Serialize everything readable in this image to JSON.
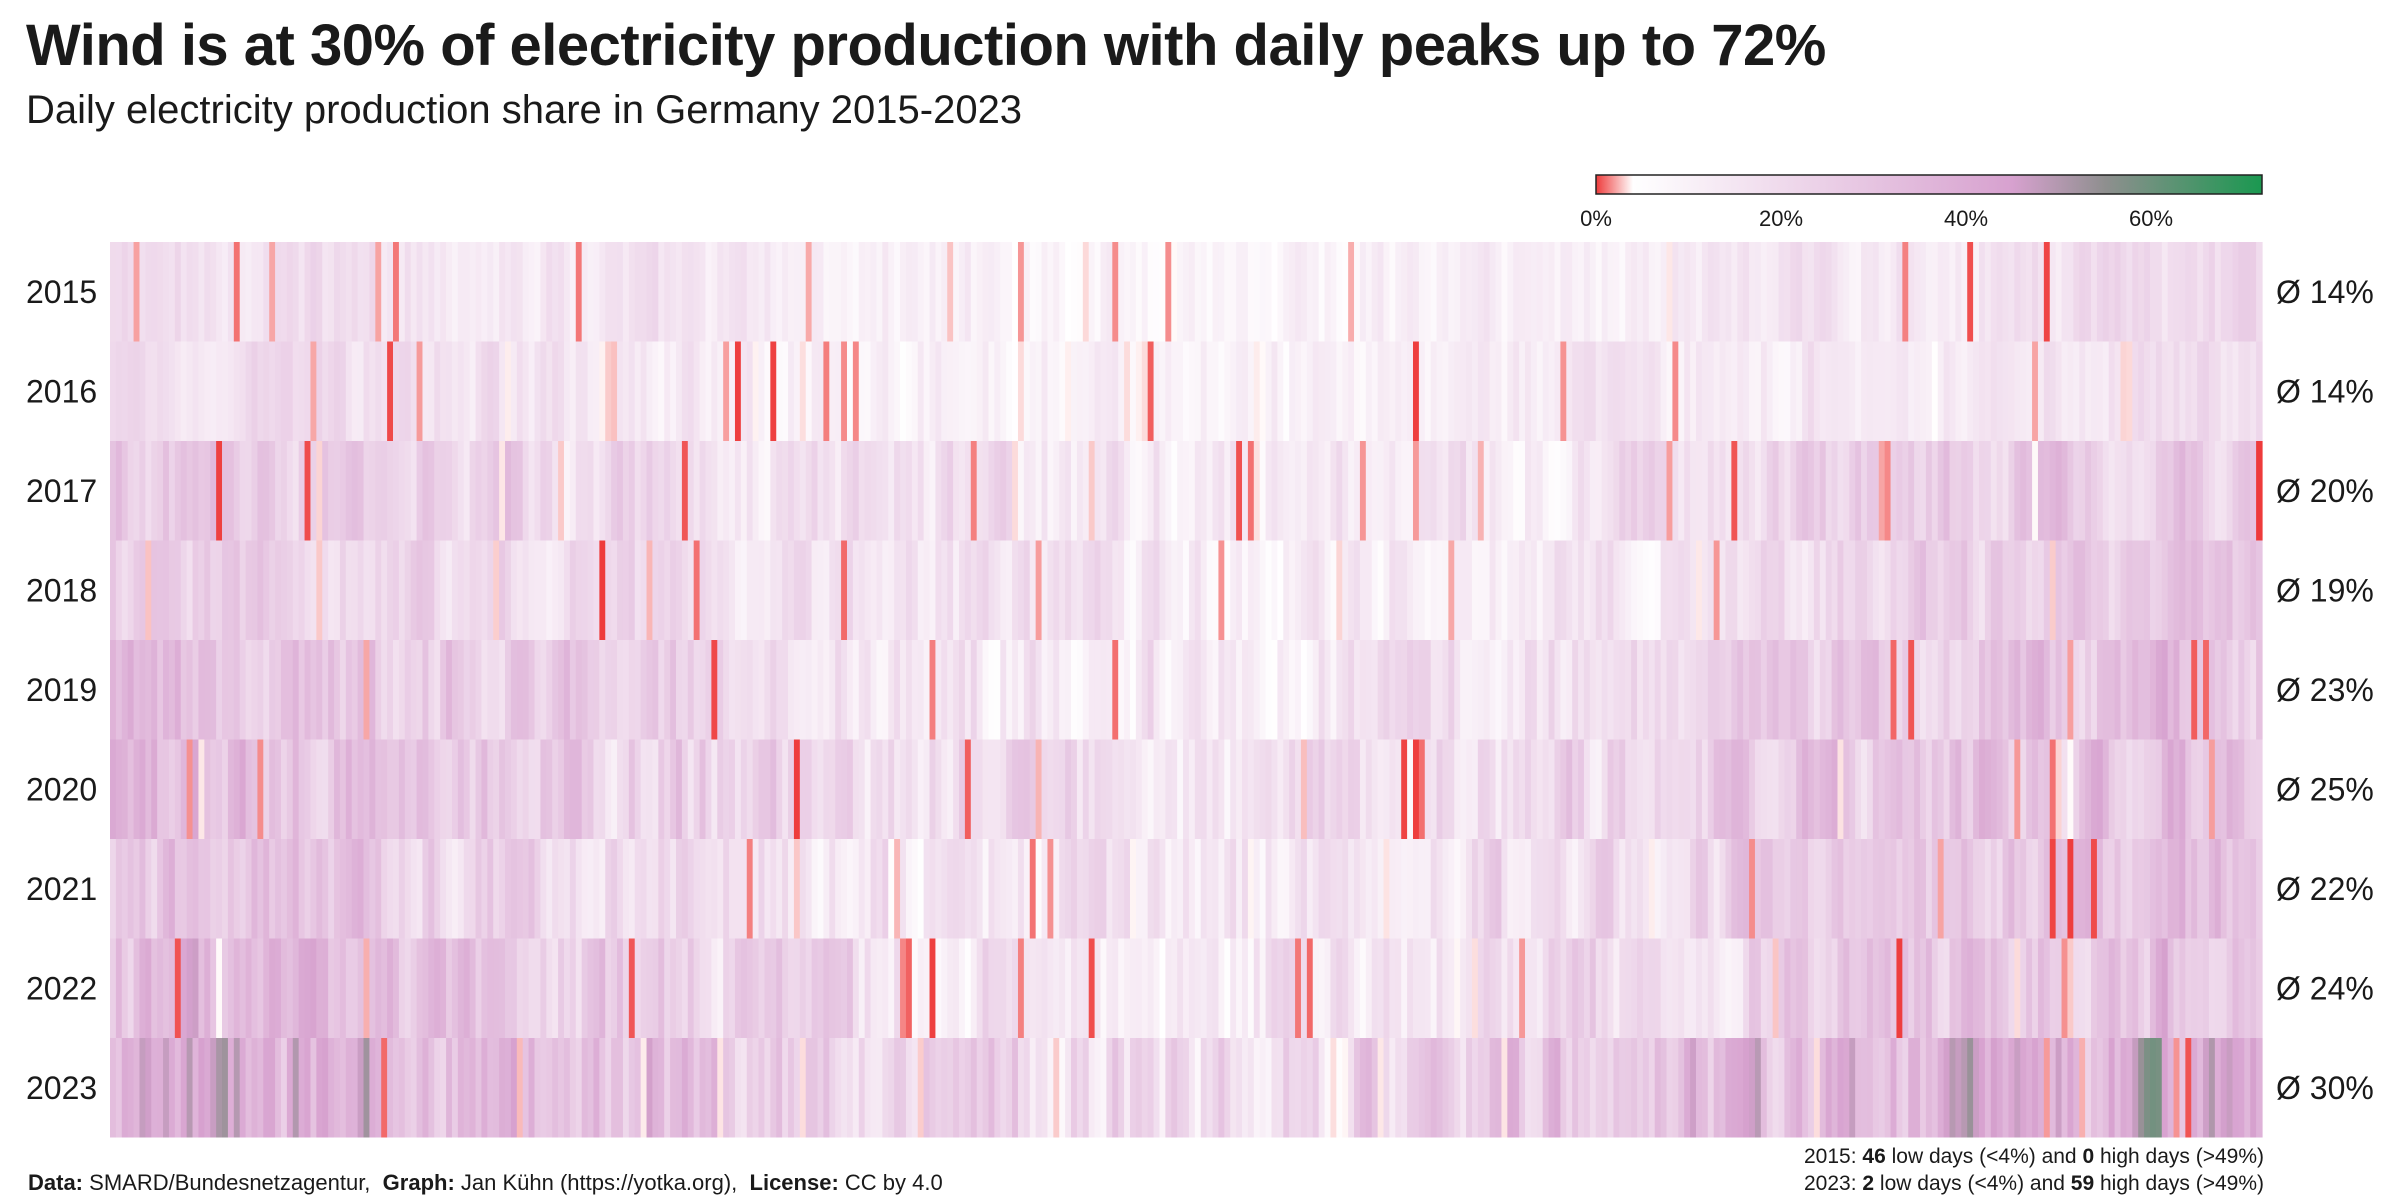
{
  "title": "Wind is at 30% of electricity production with daily peaks up to 72%",
  "subtitle": "Daily electricity production share in Germany 2015-2023",
  "footer": {
    "data_label": "Data:",
    "data_value": "SMARD/Bundesnetzagentur,",
    "graph_label": "Graph:",
    "graph_value": "Jan Kühn (https://yotka.org),",
    "license_label": "License:",
    "license_value": "CC by 4.0"
  },
  "summary": {
    "line1": {
      "prefix": "2015:",
      "low_count": "46",
      "low_text": "low days (<4%) and",
      "high_count": "0",
      "high_text": "high days (>49%)"
    },
    "line2": {
      "prefix": "2023:",
      "low_count": "2",
      "low_text": "low days (<4%) and",
      "high_count": "59",
      "high_text": "high days (>49%)"
    }
  },
  "colors": {
    "low": "#ee3b3b",
    "white": "#ffffff",
    "pink": "#d7a1cf",
    "gray": "#8f8f8f",
    "green": "#1a9850"
  },
  "chart_data": {
    "type": "heatmap",
    "title": "Wind is at 30% of electricity production with daily peaks up to 72%",
    "subtitle": "Daily electricity production share in Germany 2015-2023",
    "x": "day of year",
    "y_categories": [
      "2015",
      "2016",
      "2017",
      "2018",
      "2019",
      "2020",
      "2021",
      "2022",
      "2023"
    ],
    "averages": [
      "Ø 14%",
      "Ø 14%",
      "Ø 20%",
      "Ø 19%",
      "Ø 23%",
      "Ø 25%",
      "Ø 22%",
      "Ø 24%",
      "Ø 30%"
    ],
    "mean_values": [
      14,
      14,
      20,
      19,
      23,
      25,
      22,
      24,
      30
    ],
    "max_value": 72,
    "colorscale": {
      "range": [
        0,
        72
      ],
      "ticks": [
        0,
        20,
        40,
        60
      ],
      "tick_labels": [
        "0%",
        "20%",
        "40%",
        "60%"
      ],
      "stops": [
        {
          "value": 0,
          "color": "#ee3b3b"
        },
        {
          "value": 4,
          "color": "#ffffff"
        },
        {
          "value": 45,
          "color": "#d7a1cf"
        },
        {
          "value": 55,
          "color": "#8f8f8f"
        },
        {
          "value": 72,
          "color": "#1a9850"
        }
      ]
    },
    "low_threshold": 4,
    "high_threshold": 49,
    "low_days": {
      "2015": 46,
      "2023": 2
    },
    "high_days": {
      "2015": 0,
      "2023": 59
    },
    "days_per_year": 365
  }
}
